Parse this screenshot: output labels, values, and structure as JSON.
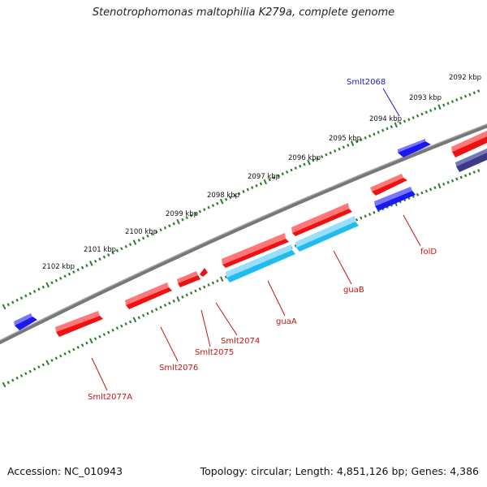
{
  "title": "Stenotrophomonas maltophilia K279a, complete genome",
  "accession_label": "Accession: NC_010943",
  "summary_label": "Topology: circular; Length: 4,851,126 bp; Genes: 4,386",
  "scale_labels": [
    "2092 kbp",
    "2093 kbp",
    "2094 kbp",
    "2095 kbp",
    "2096 kbp",
    "2097 kbp",
    "2098 kbp",
    "2099 kbp",
    "2100 kbp",
    "2101 kbp",
    "2102 kbp"
  ],
  "gene_labels": [
    {
      "text": "Smlt2068",
      "color": "#1a1acc"
    },
    {
      "text": "folD",
      "color": "#cc1111"
    },
    {
      "text": "guaB",
      "color": "#cc1111"
    },
    {
      "text": "guaA",
      "color": "#cc1111"
    },
    {
      "text": "Smlt2074",
      "color": "#cc1111"
    },
    {
      "text": "Smlt2075",
      "color": "#cc1111"
    },
    {
      "text": "Smlt2076",
      "color": "#cc1111"
    },
    {
      "text": "Smlt2077A",
      "color": "#cc1111"
    }
  ],
  "colors": {
    "backbone": "#777777",
    "scale_ticks": "#2e7d2e",
    "cds_red": "#ee1111",
    "cds_blue": "#1a1aee",
    "cds_cyan": "#22bbee",
    "cds_navy": "#3a3a88"
  }
}
